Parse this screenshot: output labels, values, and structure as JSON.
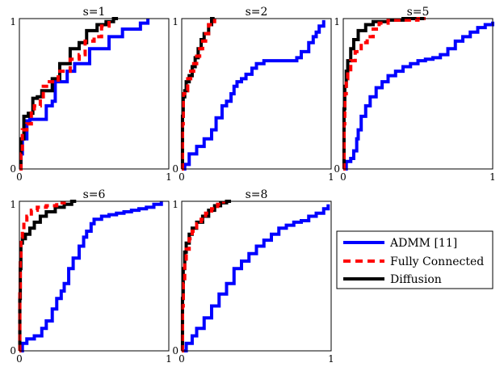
{
  "colors": {
    "admm": "#0000ff",
    "fully": "#ff0000",
    "diffusion": "#000000",
    "axis": "#000000"
  },
  "legend": {
    "placement": "lower-right empty slot",
    "entries": [
      {
        "label": "ADMM [11]",
        "style": "solid",
        "color": "#0000ff"
      },
      {
        "label": "Fully Connected",
        "style": "dashed",
        "color": "#ff0000"
      },
      {
        "label": "Diffusion",
        "style": "solid",
        "color": "#000000"
      }
    ]
  },
  "chart_data": [
    {
      "type": "line",
      "title": "s=1",
      "xlim": [
        0,
        1
      ],
      "ylim": [
        0,
        1
      ],
      "xticks": [
        "0",
        "1"
      ],
      "yticks": [
        "0",
        "1"
      ],
      "grid": false,
      "series": [
        {
          "name": "ADMM [11]",
          "x": [
            0,
            0.01,
            0.02,
            0.03,
            0.05,
            0.07,
            0.14,
            0.18,
            0.22,
            0.24,
            0.29,
            0.32,
            0.36,
            0.37,
            0.45,
            0.47,
            0.55,
            0.6,
            0.66,
            0.69,
            0.75,
            0.81,
            0.86
          ],
          "y": [
            0,
            0.1,
            0.2,
            0.2,
            0.32,
            0.33,
            0.33,
            0.42,
            0.45,
            0.58,
            0.58,
            0.65,
            0.65,
            0.7,
            0.7,
            0.8,
            0.8,
            0.88,
            0.88,
            0.93,
            0.93,
            0.97,
            1.0
          ]
        },
        {
          "name": "Fully Connected",
          "x": [
            0,
            0.01,
            0.02,
            0.05,
            0.08,
            0.1,
            0.14,
            0.16,
            0.2,
            0.26,
            0.3,
            0.34,
            0.4,
            0.44,
            0.5,
            0.55,
            0.6
          ],
          "y": [
            0,
            0.1,
            0.26,
            0.3,
            0.4,
            0.42,
            0.48,
            0.55,
            0.58,
            0.65,
            0.65,
            0.73,
            0.76,
            0.85,
            0.88,
            0.95,
            1.0
          ]
        },
        {
          "name": "Diffusion",
          "x": [
            0,
            0.01,
            0.03,
            0.06,
            0.09,
            0.12,
            0.15,
            0.22,
            0.27,
            0.34,
            0.4,
            0.45,
            0.52,
            0.58,
            0.63,
            0.66
          ],
          "y": [
            0,
            0.2,
            0.35,
            0.37,
            0.47,
            0.48,
            0.52,
            0.6,
            0.7,
            0.8,
            0.84,
            0.92,
            0.96,
            0.98,
            1.0,
            1.0
          ]
        }
      ]
    },
    {
      "type": "line",
      "title": "s=2",
      "xlim": [
        0,
        1
      ],
      "ylim": [
        0,
        1
      ],
      "xticks": [
        "0",
        "1"
      ],
      "yticks": [
        "0",
        "1"
      ],
      "grid": false,
      "series": [
        {
          "name": "ADMM [11]",
          "x": [
            0,
            0.02,
            0.05,
            0.1,
            0.15,
            0.2,
            0.23,
            0.27,
            0.3,
            0.33,
            0.35,
            0.37,
            0.4,
            0.43,
            0.47,
            0.5,
            0.55,
            0.6,
            0.63,
            0.7,
            0.75,
            0.77,
            0.8,
            0.85,
            0.88,
            0.9,
            0.92,
            0.95
          ],
          "y": [
            0,
            0.03,
            0.1,
            0.15,
            0.2,
            0.26,
            0.34,
            0.42,
            0.45,
            0.5,
            0.55,
            0.58,
            0.6,
            0.63,
            0.67,
            0.7,
            0.72,
            0.72,
            0.72,
            0.72,
            0.72,
            0.74,
            0.78,
            0.84,
            0.88,
            0.91,
            0.95,
            0.99
          ]
        },
        {
          "name": "Fully Connected",
          "x": [
            0,
            0.005,
            0.01,
            0.02,
            0.04,
            0.06,
            0.08,
            0.1,
            0.12,
            0.14,
            0.16,
            0.18,
            0.22
          ],
          "y": [
            0,
            0.3,
            0.5,
            0.52,
            0.6,
            0.65,
            0.7,
            0.75,
            0.8,
            0.85,
            0.9,
            0.96,
            1.0
          ]
        },
        {
          "name": "Diffusion",
          "x": [
            0,
            0.005,
            0.01,
            0.02,
            0.03,
            0.05,
            0.07,
            0.09,
            0.11,
            0.13,
            0.15,
            0.18,
            0.2,
            0.22
          ],
          "y": [
            0,
            0.35,
            0.48,
            0.52,
            0.58,
            0.62,
            0.68,
            0.74,
            0.8,
            0.86,
            0.9,
            0.96,
            1.0,
            1.0
          ]
        }
      ]
    },
    {
      "type": "line",
      "title": "s=5",
      "xlim": [
        0,
        1
      ],
      "ylim": [
        0,
        1
      ],
      "xticks": [
        "0",
        "1"
      ],
      "yticks": [
        "0",
        "1"
      ],
      "grid": false,
      "series": [
        {
          "name": "ADMM [11]",
          "x": [
            0,
            0.02,
            0.05,
            0.07,
            0.09,
            0.1,
            0.12,
            0.15,
            0.18,
            0.22,
            0.26,
            0.3,
            0.35,
            0.4,
            0.45,
            0.5,
            0.55,
            0.6,
            0.65,
            0.7,
            0.75,
            0.8,
            0.85,
            0.9,
            0.95,
            1.0
          ],
          "y": [
            0,
            0.05,
            0.07,
            0.12,
            0.2,
            0.26,
            0.35,
            0.42,
            0.48,
            0.54,
            0.58,
            0.62,
            0.65,
            0.68,
            0.7,
            0.72,
            0.73,
            0.74,
            0.76,
            0.8,
            0.85,
            0.88,
            0.91,
            0.94,
            0.96,
            0.98
          ]
        },
        {
          "name": "Fully Connected",
          "x": [
            0,
            0.005,
            0.01,
            0.02,
            0.03,
            0.05,
            0.08,
            0.12,
            0.16,
            0.2,
            0.24,
            0.3,
            0.4,
            0.5,
            0.55
          ],
          "y": [
            0,
            0.3,
            0.5,
            0.6,
            0.66,
            0.72,
            0.78,
            0.84,
            0.88,
            0.93,
            0.97,
            0.99,
            0.99,
            1.0,
            1.0
          ]
        },
        {
          "name": "Diffusion",
          "x": [
            0,
            0.005,
            0.01,
            0.02,
            0.03,
            0.05,
            0.07,
            0.1,
            0.15,
            0.2,
            0.3,
            0.4,
            0.5,
            0.55
          ],
          "y": [
            0,
            0.4,
            0.55,
            0.65,
            0.72,
            0.8,
            0.86,
            0.92,
            0.96,
            0.98,
            0.99,
            1.0,
            1.0,
            1.0
          ]
        }
      ]
    },
    {
      "type": "line",
      "title": "s=6",
      "xlim": [
        0,
        1
      ],
      "ylim": [
        0,
        1
      ],
      "xticks": [
        "0",
        "1"
      ],
      "yticks": [
        "0",
        "1"
      ],
      "grid": false,
      "series": [
        {
          "name": "ADMM [11]",
          "x": [
            0,
            0.02,
            0.05,
            0.1,
            0.15,
            0.18,
            0.22,
            0.25,
            0.28,
            0.3,
            0.33,
            0.36,
            0.4,
            0.43,
            0.45,
            0.48,
            0.5,
            0.55,
            0.6,
            0.65,
            0.7,
            0.75,
            0.8,
            0.85,
            0.9,
            0.95
          ],
          "y": [
            0,
            0.05,
            0.08,
            0.1,
            0.15,
            0.2,
            0.28,
            0.35,
            0.4,
            0.45,
            0.55,
            0.62,
            0.7,
            0.76,
            0.8,
            0.85,
            0.88,
            0.9,
            0.91,
            0.92,
            0.93,
            0.94,
            0.95,
            0.96,
            0.98,
            1.0
          ]
        },
        {
          "name": "Fully Connected",
          "x": [
            0,
            0.003,
            0.006,
            0.01,
            0.02,
            0.03,
            0.05,
            0.08,
            0.12,
            0.18,
            0.25,
            0.3
          ],
          "y": [
            0,
            0.4,
            0.6,
            0.76,
            0.8,
            0.86,
            0.9,
            0.94,
            0.96,
            0.97,
            0.99,
            1.0
          ]
        },
        {
          "name": "Diffusion",
          "x": [
            0,
            0.003,
            0.006,
            0.01,
            0.02,
            0.04,
            0.07,
            0.1,
            0.14,
            0.18,
            0.24,
            0.3,
            0.35,
            0.38
          ],
          "y": [
            0,
            0.35,
            0.55,
            0.72,
            0.75,
            0.78,
            0.82,
            0.86,
            0.9,
            0.93,
            0.96,
            0.98,
            1.0,
            1.0
          ]
        }
      ]
    },
    {
      "type": "line",
      "title": "s=8",
      "xlim": [
        0,
        1
      ],
      "ylim": [
        0,
        1
      ],
      "xticks": [
        "0",
        "1"
      ],
      "yticks": [
        "0",
        "1"
      ],
      "grid": false,
      "series": [
        {
          "name": "ADMM [11]",
          "x": [
            0,
            0.03,
            0.07,
            0.1,
            0.15,
            0.2,
            0.25,
            0.3,
            0.35,
            0.4,
            0.45,
            0.5,
            0.55,
            0.6,
            0.65,
            0.7,
            0.75,
            0.8,
            0.85,
            0.9,
            0.95,
            0.98
          ],
          "y": [
            0,
            0.05,
            0.1,
            0.15,
            0.22,
            0.3,
            0.38,
            0.45,
            0.55,
            0.6,
            0.65,
            0.7,
            0.74,
            0.78,
            0.82,
            0.84,
            0.86,
            0.87,
            0.9,
            0.92,
            0.95,
            0.98
          ]
        },
        {
          "name": "Fully Connected",
          "x": [
            0,
            0.005,
            0.01,
            0.02,
            0.03,
            0.05,
            0.07,
            0.1,
            0.13,
            0.16,
            0.2,
            0.24,
            0.28
          ],
          "y": [
            0,
            0.3,
            0.45,
            0.6,
            0.68,
            0.75,
            0.8,
            0.85,
            0.88,
            0.92,
            0.95,
            0.98,
            1.0
          ]
        },
        {
          "name": "Diffusion",
          "x": [
            0,
            0.005,
            0.01,
            0.02,
            0.03,
            0.05,
            0.07,
            0.1,
            0.14,
            0.18,
            0.22,
            0.26,
            0.3,
            0.33
          ],
          "y": [
            0,
            0.35,
            0.55,
            0.66,
            0.72,
            0.78,
            0.82,
            0.86,
            0.9,
            0.94,
            0.97,
            0.99,
            1.0,
            1.0
          ]
        }
      ]
    }
  ]
}
